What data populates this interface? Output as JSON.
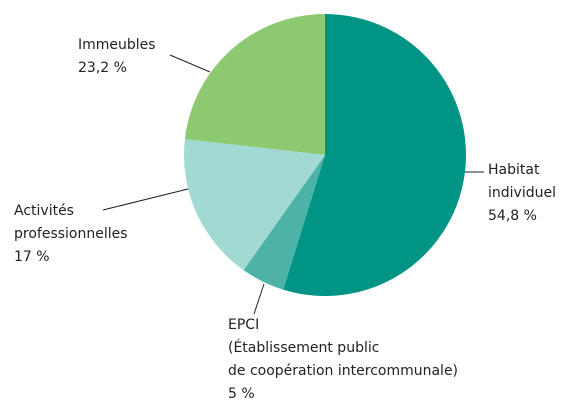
{
  "chart_data": {
    "type": "pie",
    "categories": [
      [
        "Habitat",
        "individuel"
      ],
      [
        "EPCI",
        "(Établissement public",
        "de coopération intercommunale)"
      ],
      [
        "Activités",
        "professionnelles"
      ],
      [
        "Immeubles"
      ]
    ],
    "values": [
      54.8,
      5,
      17,
      23.2
    ],
    "value_labels": [
      "54,8 %",
      "5 %",
      "17 %",
      "23,2 %"
    ],
    "colors": [
      "#009485",
      "#4db3a8",
      "#a3d9d3",
      "#8dc971"
    ]
  }
}
